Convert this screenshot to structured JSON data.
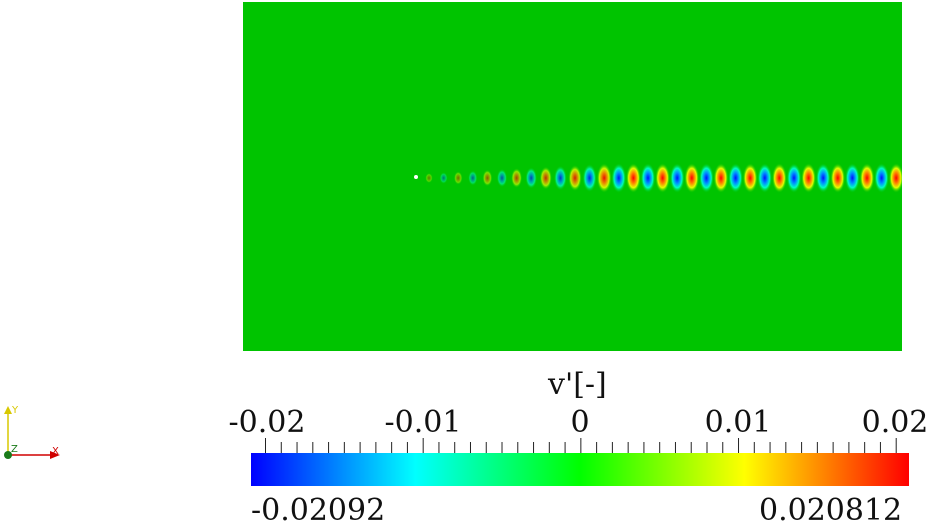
{
  "colorbar": {
    "title": "v'[-]",
    "ticks": [
      "-0.02",
      "-0.01",
      "0",
      "0.01",
      "0.02"
    ],
    "tick_values": [
      -0.02,
      -0.01,
      0,
      0.01,
      0.02
    ],
    "min_label": "-0.02092",
    "max_label": "0.020812",
    "min": -0.02092,
    "max": 0.020812,
    "colormap": [
      "#0000ff",
      "#00ffff",
      "#00ff00",
      "#ffff00",
      "#ff0000"
    ]
  },
  "axes": {
    "x_label": "X",
    "y_label": "Y",
    "z_label": "Z"
  },
  "field": {
    "background_color": "#00c400",
    "positive_color": "#ff2000",
    "negative_color": "#0030ff"
  }
}
